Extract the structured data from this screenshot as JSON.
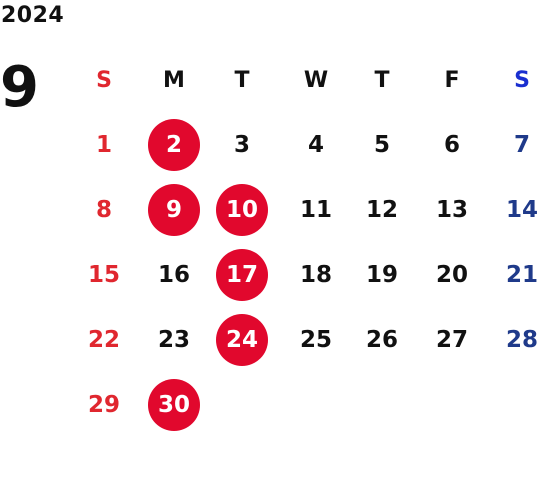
{
  "year": "2024",
  "month": "9",
  "weekdays": [
    "S",
    "M",
    "T",
    "W",
    "T",
    "F",
    "S"
  ],
  "weeks": [
    [
      "1",
      "2",
      "3",
      "4",
      "5",
      "6",
      "7"
    ],
    [
      "8",
      "9",
      "10",
      "11",
      "12",
      "13",
      "14"
    ],
    [
      "15",
      "16",
      "17",
      "18",
      "19",
      "20",
      "21"
    ],
    [
      "22",
      "23",
      "24",
      "25",
      "26",
      "27",
      "28"
    ],
    [
      "29",
      "30",
      "",
      "",
      "",
      "",
      ""
    ]
  ],
  "marked_days": [
    "2",
    "9",
    "10",
    "17",
    "24",
    "30"
  ],
  "colors": {
    "sunday": "#e0272f",
    "saturday": "#1f3a8a",
    "saturday_header": "#1a2fd0",
    "marked_fill": "#e1082d",
    "text": "#111111"
  }
}
